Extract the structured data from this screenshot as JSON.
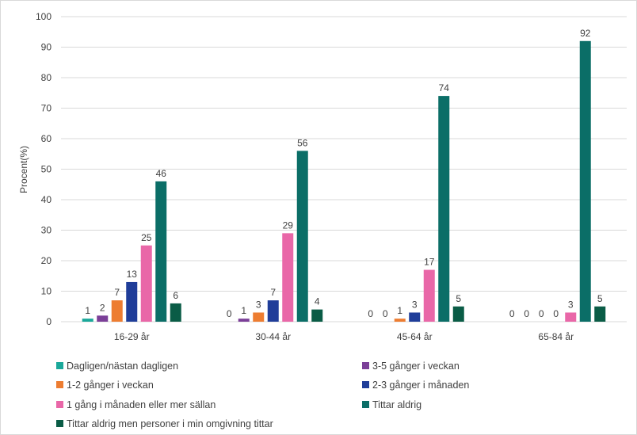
{
  "chart_data": {
    "type": "bar",
    "ylabel": "Procent(%)",
    "ylim": [
      0,
      100
    ],
    "yticks": [
      0,
      10,
      20,
      30,
      40,
      50,
      60,
      70,
      80,
      90,
      100
    ],
    "grid": true,
    "legend_position": "bottom",
    "categories": [
      "16-29 år",
      "30-44 år",
      "45-64 år",
      "65-84 år"
    ],
    "series": [
      {
        "name": "Dagligen/nästan dagligen",
        "color": "#1aa89a",
        "values": [
          1,
          0,
          0,
          0
        ],
        "labels": [
          "1",
          "0",
          "0",
          "0"
        ]
      },
      {
        "name": "3-5 gånger i veckan",
        "color": "#7b3f98",
        "values": [
          2,
          1,
          0,
          0
        ],
        "labels": [
          "2",
          "1",
          "0",
          "0"
        ]
      },
      {
        "name": "1-2 gånger i veckan",
        "color": "#ed7d31",
        "values": [
          7,
          3,
          1,
          0
        ],
        "labels": [
          "7",
          "3",
          "1",
          "0"
        ]
      },
      {
        "name": "2-3 gånger i månaden",
        "color": "#1f3d99",
        "values": [
          13,
          7,
          3,
          0
        ],
        "labels": [
          "13",
          "7",
          "3",
          "0"
        ]
      },
      {
        "name": "1 gång i månaden eller mer sällan",
        "color": "#e967a8",
        "values": [
          25,
          29,
          17,
          3
        ],
        "labels": [
          "25",
          "29",
          "17",
          "3"
        ]
      },
      {
        "name": "Tittar aldrig",
        "color": "#0b6e67",
        "values": [
          46,
          56,
          74,
          92
        ],
        "labels": [
          "46",
          "56",
          "74",
          "92"
        ]
      },
      {
        "name": "Tittar aldrig men personer i min omgivning tittar",
        "color": "#0a5c46",
        "values": [
          6,
          4,
          5,
          5
        ],
        "labels": [
          "6",
          "4",
          "5",
          "5"
        ]
      }
    ]
  },
  "legend": {
    "items": [
      "Dagligen/nästan dagligen",
      "3-5 gånger i veckan",
      "1-2 gånger i veckan",
      "2-3 gånger i månaden",
      "1 gång i månaden eller mer sällan",
      "Tittar aldrig",
      "Tittar aldrig men personer i min omgivning tittar"
    ]
  }
}
